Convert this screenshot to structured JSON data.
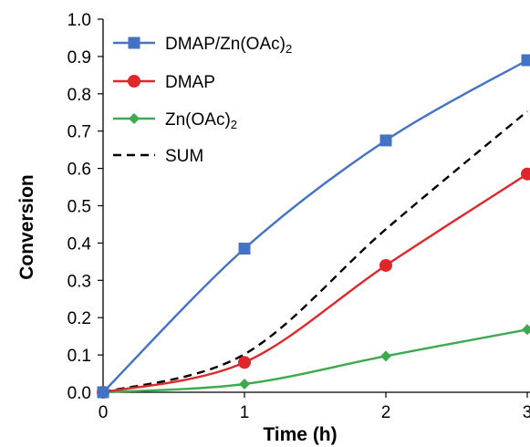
{
  "chart_data": {
    "type": "line",
    "title": "",
    "xlabel": "Time (h)",
    "ylabel": "Conversion",
    "xlim": [
      0,
      3
    ],
    "ylim": [
      0,
      1.0
    ],
    "x_ticks": [
      "0",
      "1",
      "2",
      "3"
    ],
    "y_ticks": [
      "0.0",
      "0.1",
      "0.2",
      "0.3",
      "0.4",
      "0.5",
      "0.6",
      "0.7",
      "0.8",
      "0.9",
      "1.0"
    ],
    "grid": false,
    "legend_position": "top-left",
    "series": [
      {
        "name": "DMAP/Zn(OAc)2",
        "legend_parts": [
          "DMAP/Zn(OAc)",
          "2"
        ],
        "color": "#4472C4",
        "marker": "square",
        "line": "solid",
        "x": [
          0,
          1,
          2,
          3
        ],
        "y": [
          0.0,
          0.385,
          0.675,
          0.89
        ]
      },
      {
        "name": "DMAP",
        "legend_parts": [
          "DMAP",
          ""
        ],
        "color": "#E0262B",
        "marker": "circle",
        "line": "solid",
        "x": [
          0,
          1,
          2,
          3
        ],
        "y": [
          0.0,
          0.08,
          0.34,
          0.585
        ]
      },
      {
        "name": "Zn(OAc)2",
        "legend_parts": [
          "Zn(OAc)",
          "2"
        ],
        "color": "#3DAA4F",
        "marker": "diamond",
        "line": "solid",
        "x": [
          0,
          1,
          2,
          3
        ],
        "y": [
          0.0,
          0.022,
          0.097,
          0.168
        ]
      },
      {
        "name": "SUM",
        "legend_parts": [
          "SUM",
          ""
        ],
        "color": "#000000",
        "marker": "none",
        "line": "dashed",
        "x": [
          0,
          1,
          2,
          3
        ],
        "y": [
          0.0,
          0.102,
          0.437,
          0.753
        ]
      }
    ]
  }
}
